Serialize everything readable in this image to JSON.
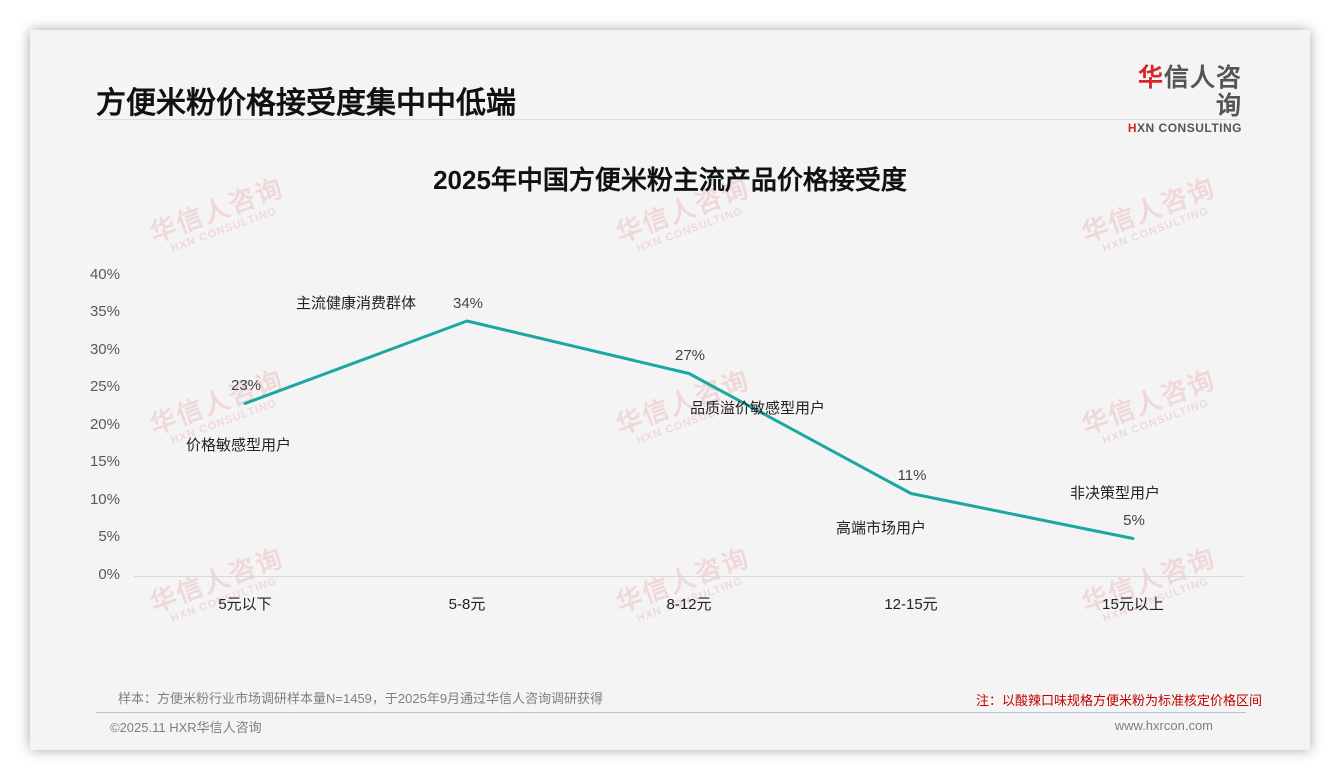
{
  "header": {
    "page_title": "方便米粉价格接受度集中中低端",
    "logo_cn_first": "华",
    "logo_cn_rest": "信人咨询",
    "logo_en_first": "H",
    "logo_en_rest": "XN CONSULTING"
  },
  "watermark": {
    "cn": "华信人咨询",
    "en": "HXN CONSULTING"
  },
  "chart_data": {
    "type": "line",
    "title": "2025年中国方便米粉主流产品价格接受度",
    "xlabel": "",
    "ylabel": "",
    "categories": [
      "5元以下",
      "5-8元",
      "8-12元",
      "12-15元",
      "15元以上"
    ],
    "series": [
      {
        "name": "价格接受度",
        "values": [
          23,
          34,
          27,
          11,
          5
        ],
        "color": "#1aa8a0"
      }
    ],
    "data_labels": [
      "23%",
      "34%",
      "27%",
      "11%",
      "5%"
    ],
    "annotations": [
      "价格敏感型用户",
      "主流健康消费群体",
      "品质溢价敏感型用户",
      "高端市场用户",
      "非决策型用户"
    ],
    "yticks": [
      "0%",
      "5%",
      "10%",
      "15%",
      "20%",
      "25%",
      "30%",
      "35%",
      "40%"
    ],
    "ylim": [
      0,
      40
    ],
    "grid": false,
    "legend": "none"
  },
  "footer": {
    "sample": "样本：方便米粉行业市场调研样本量N=1459，于2025年9月通过华信人咨询调研获得",
    "note": "注：以酸辣口味规格方便米粉为标准核定价格区间",
    "copyright": "©2025.11 HXR华信人咨询",
    "website": "www.hxrcon.com"
  }
}
